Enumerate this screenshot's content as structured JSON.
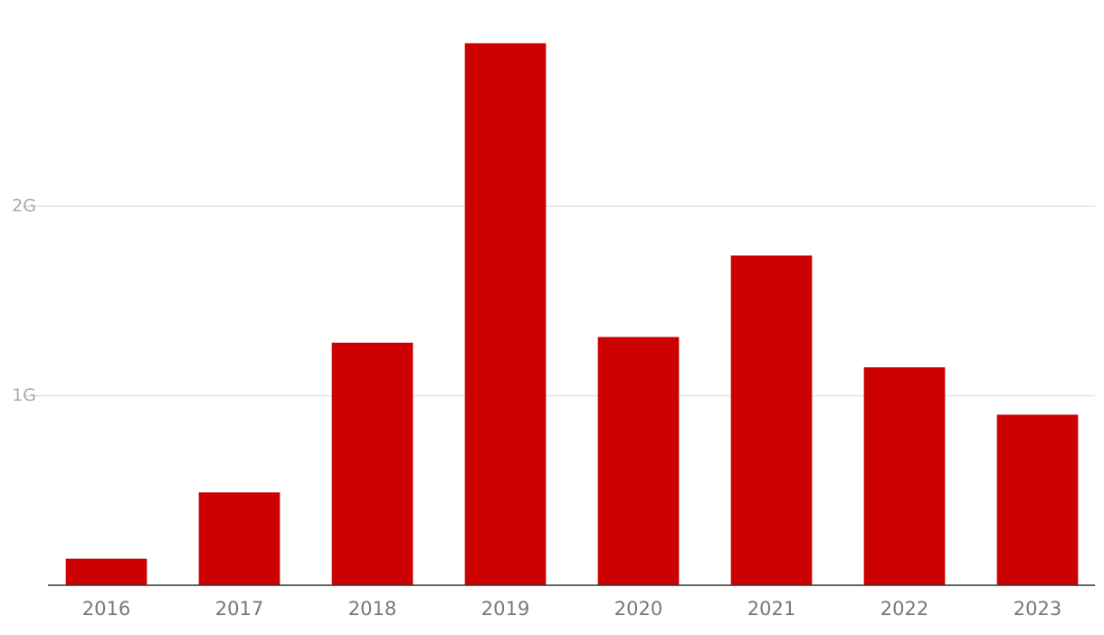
{
  "chart_data": {
    "type": "bar",
    "categories": [
      "2016",
      "2017",
      "2018",
      "2019",
      "2020",
      "2021",
      "2022",
      "2023"
    ],
    "values": [
      140000000,
      490000000,
      1280000000,
      2860000000,
      1310000000,
      1740000000,
      1150000000,
      900000000
    ],
    "color": "#cc0000",
    "ylim": [
      0,
      3000000000
    ],
    "yticks": [
      {
        "value": 1000000000,
        "label": "1G"
      },
      {
        "value": 2000000000,
        "label": "2G"
      }
    ],
    "grid": true
  }
}
